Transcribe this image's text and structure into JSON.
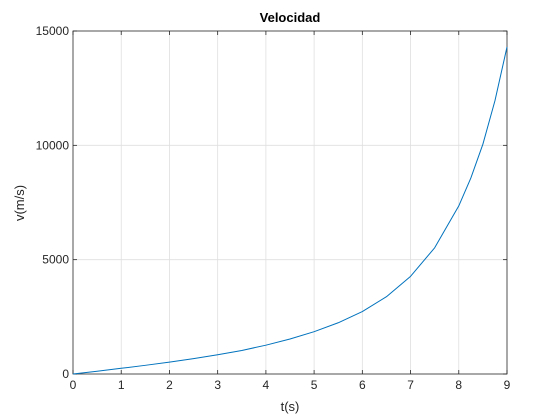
{
  "chart_data": {
    "type": "line",
    "title": "Velocidad",
    "xlabel": "t(s)",
    "ylabel": "v(m/s)",
    "xlim": [
      0,
      9
    ],
    "ylim": [
      0,
      15000
    ],
    "grid": true,
    "x_ticks": [
      0,
      1,
      2,
      3,
      4,
      5,
      6,
      7,
      8,
      9
    ],
    "y_ticks": [
      0,
      5000,
      10000,
      15000
    ],
    "x_tick_labels": [
      "0",
      "1",
      "2",
      "3",
      "4",
      "5",
      "6",
      "7",
      "8",
      "9"
    ],
    "y_tick_labels": [
      "0",
      "5000",
      "10000",
      "15000"
    ],
    "series": [
      {
        "color": "#0072BD",
        "x": [
          0,
          0.5,
          1,
          1.5,
          2,
          2.5,
          3,
          3.5,
          4,
          4.5,
          5,
          5.5,
          6,
          6.5,
          7,
          7.5,
          8,
          8.25,
          8.5,
          8.75,
          9
        ],
        "y": [
          0,
          120,
          250,
          380,
          520,
          670,
          840,
          1030,
          1260,
          1530,
          1850,
          2240,
          2730,
          3380,
          4270,
          5520,
          7350,
          8570,
          10050,
          11950,
          14300
        ]
      }
    ]
  }
}
